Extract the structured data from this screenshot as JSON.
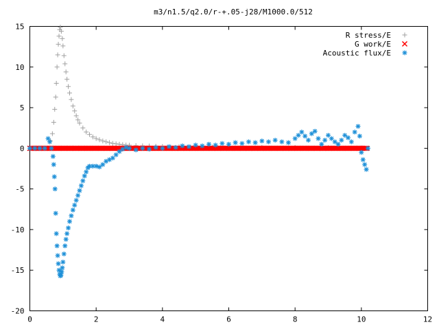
{
  "chart_data": {
    "type": "scatter",
    "title": "m3/n1.5/q2.0/r-+.05-j28/M1000.0/512",
    "xlabel": "",
    "ylabel": "",
    "xlim": [
      0,
      12
    ],
    "ylim": [
      -20,
      15
    ],
    "xticks": [
      "0",
      "2",
      "4",
      "6",
      "8",
      "10",
      "12"
    ],
    "yticks": [
      "15",
      "10",
      "5",
      "0",
      "-5",
      "-10",
      "-15",
      "-20"
    ],
    "grid": false,
    "legend_position": "top-right",
    "series": [
      {
        "name": "R stress/E",
        "marker": "plus",
        "color": "#a0a0a0",
        "points": [
          [
            0.62,
            0.9
          ],
          [
            0.68,
            1.8
          ],
          [
            0.72,
            3.2
          ],
          [
            0.75,
            4.8
          ],
          [
            0.78,
            6.3
          ],
          [
            0.8,
            8.0
          ],
          [
            0.82,
            10.0
          ],
          [
            0.84,
            11.5
          ],
          [
            0.86,
            12.8
          ],
          [
            0.88,
            13.8
          ],
          [
            0.9,
            14.6
          ],
          [
            0.92,
            14.9
          ],
          [
            0.95,
            14.4
          ],
          [
            0.98,
            13.5
          ],
          [
            1.0,
            12.6
          ],
          [
            1.03,
            11.4
          ],
          [
            1.06,
            10.4
          ],
          [
            1.09,
            9.4
          ],
          [
            1.12,
            8.5
          ],
          [
            1.16,
            7.6
          ],
          [
            1.2,
            6.8
          ],
          [
            1.25,
            6.0
          ],
          [
            1.3,
            5.2
          ],
          [
            1.35,
            4.6
          ],
          [
            1.4,
            4.0
          ],
          [
            1.45,
            3.5
          ],
          [
            1.5,
            3.1
          ],
          [
            1.6,
            2.5
          ],
          [
            1.7,
            2.0
          ],
          [
            1.8,
            1.7
          ],
          [
            1.9,
            1.4
          ],
          [
            2.0,
            1.2
          ],
          [
            2.1,
            1.05
          ],
          [
            2.2,
            0.9
          ],
          [
            2.3,
            0.8
          ],
          [
            2.4,
            0.7
          ],
          [
            2.5,
            0.6
          ],
          [
            2.6,
            0.55
          ],
          [
            2.7,
            0.5
          ],
          [
            2.8,
            0.45
          ],
          [
            2.9,
            0.4
          ],
          [
            3.0,
            0.38
          ],
          [
            3.2,
            0.33
          ],
          [
            3.4,
            0.3
          ],
          [
            3.6,
            0.28
          ],
          [
            3.8,
            0.25
          ],
          [
            4.0,
            0.23
          ],
          [
            4.5,
            0.2
          ],
          [
            5.0,
            0.18
          ],
          [
            5.5,
            0.16
          ],
          [
            6.0,
            0.15
          ],
          [
            7.0,
            0.12
          ],
          [
            8.0,
            0.1
          ],
          [
            9.0,
            0.08
          ],
          [
            10.0,
            0.05
          ]
        ]
      },
      {
        "name": "G work/E",
        "marker": "cross",
        "color": "#ff0000",
        "points": [
          [
            0.0,
            0.0
          ],
          [
            0.6,
            0.0
          ],
          [
            0.7,
            0.0
          ],
          [
            0.8,
            0.0
          ],
          [
            0.9,
            0.0
          ],
          [
            1.0,
            0.0
          ],
          [
            1.2,
            0.0
          ],
          [
            1.4,
            0.0
          ],
          [
            1.6,
            0.0
          ],
          [
            1.8,
            0.0
          ],
          [
            2.0,
            0.0
          ],
          [
            2.5,
            0.0
          ],
          [
            3.0,
            0.0
          ],
          [
            3.5,
            0.0
          ],
          [
            4.0,
            0.0
          ],
          [
            4.5,
            0.0
          ],
          [
            5.0,
            0.0
          ],
          [
            5.5,
            0.0
          ],
          [
            6.0,
            0.0
          ],
          [
            6.5,
            0.0
          ],
          [
            7.0,
            0.0
          ],
          [
            7.5,
            0.0
          ],
          [
            8.0,
            0.0
          ],
          [
            8.5,
            0.0
          ],
          [
            9.0,
            0.0
          ],
          [
            9.5,
            0.0
          ],
          [
            10.0,
            0.0
          ],
          [
            10.2,
            0.0
          ]
        ]
      },
      {
        "name": "Acoustic flux/E",
        "marker": "star",
        "color": "#1e90d8",
        "points": [
          [
            0.0,
            0.0
          ],
          [
            0.15,
            0.0
          ],
          [
            0.3,
            0.0
          ],
          [
            0.45,
            0.0
          ],
          [
            0.55,
            1.2
          ],
          [
            0.6,
            0.8
          ],
          [
            0.65,
            0.0
          ],
          [
            0.7,
            -1.0
          ],
          [
            0.72,
            -2.0
          ],
          [
            0.74,
            -3.5
          ],
          [
            0.76,
            -5.0
          ],
          [
            0.78,
            -8.0
          ],
          [
            0.8,
            -10.5
          ],
          [
            0.82,
            -12.0
          ],
          [
            0.84,
            -13.2
          ],
          [
            0.86,
            -14.2
          ],
          [
            0.88,
            -15.0
          ],
          [
            0.9,
            -15.5
          ],
          [
            0.92,
            -15.7
          ],
          [
            0.94,
            -15.6
          ],
          [
            0.96,
            -15.2
          ],
          [
            0.98,
            -14.7
          ],
          [
            1.0,
            -14.0
          ],
          [
            1.03,
            -13.0
          ],
          [
            1.06,
            -12.0
          ],
          [
            1.09,
            -11.2
          ],
          [
            1.12,
            -10.5
          ],
          [
            1.16,
            -9.8
          ],
          [
            1.2,
            -9.0
          ],
          [
            1.25,
            -8.3
          ],
          [
            1.3,
            -7.6
          ],
          [
            1.35,
            -7.0
          ],
          [
            1.4,
            -6.4
          ],
          [
            1.45,
            -5.8
          ],
          [
            1.5,
            -5.2
          ],
          [
            1.55,
            -4.6
          ],
          [
            1.6,
            -4.0
          ],
          [
            1.65,
            -3.4
          ],
          [
            1.7,
            -2.9
          ],
          [
            1.75,
            -2.4
          ],
          [
            1.8,
            -2.2
          ],
          [
            1.9,
            -2.2
          ],
          [
            2.0,
            -2.2
          ],
          [
            2.1,
            -2.3
          ],
          [
            2.2,
            -2.0
          ],
          [
            2.3,
            -1.6
          ],
          [
            2.4,
            -1.4
          ],
          [
            2.5,
            -1.2
          ],
          [
            2.6,
            -0.8
          ],
          [
            2.7,
            -0.4
          ],
          [
            2.8,
            -0.1
          ],
          [
            2.9,
            0.1
          ],
          [
            3.0,
            0.0
          ],
          [
            3.2,
            -0.2
          ],
          [
            3.4,
            0.0
          ],
          [
            3.6,
            -0.1
          ],
          [
            3.8,
            0.1
          ],
          [
            4.0,
            0.0
          ],
          [
            4.2,
            0.2
          ],
          [
            4.4,
            0.1
          ],
          [
            4.6,
            0.3
          ],
          [
            4.8,
            0.2
          ],
          [
            5.0,
            0.4
          ],
          [
            5.2,
            0.3
          ],
          [
            5.4,
            0.5
          ],
          [
            5.6,
            0.4
          ],
          [
            5.8,
            0.6
          ],
          [
            6.0,
            0.5
          ],
          [
            6.2,
            0.7
          ],
          [
            6.4,
            0.6
          ],
          [
            6.6,
            0.8
          ],
          [
            6.8,
            0.7
          ],
          [
            7.0,
            0.9
          ],
          [
            7.2,
            0.8
          ],
          [
            7.4,
            1.0
          ],
          [
            7.6,
            0.8
          ],
          [
            7.8,
            0.7
          ],
          [
            8.0,
            1.2
          ],
          [
            8.1,
            1.6
          ],
          [
            8.2,
            2.0
          ],
          [
            8.3,
            1.5
          ],
          [
            8.4,
            1.0
          ],
          [
            8.5,
            1.8
          ],
          [
            8.6,
            2.1
          ],
          [
            8.7,
            1.2
          ],
          [
            8.8,
            0.5
          ],
          [
            8.9,
            1.0
          ],
          [
            9.0,
            1.6
          ],
          [
            9.1,
            1.2
          ],
          [
            9.2,
            0.8
          ],
          [
            9.3,
            0.5
          ],
          [
            9.4,
            1.0
          ],
          [
            9.5,
            1.6
          ],
          [
            9.6,
            1.3
          ],
          [
            9.7,
            0.8
          ],
          [
            9.8,
            2.0
          ],
          [
            9.9,
            2.7
          ],
          [
            9.95,
            1.5
          ],
          [
            10.0,
            -0.5
          ],
          [
            10.05,
            -1.4
          ],
          [
            10.1,
            -2.0
          ],
          [
            10.15,
            -2.6
          ],
          [
            10.2,
            0.0
          ]
        ]
      }
    ]
  }
}
